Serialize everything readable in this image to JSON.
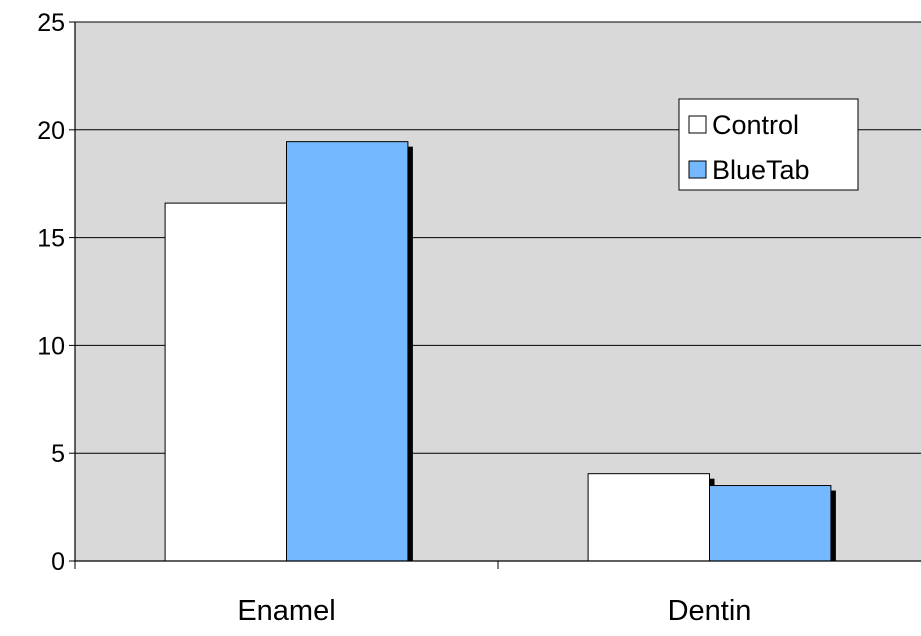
{
  "chart_data": {
    "type": "bar",
    "categories": [
      "Enamel",
      "Dentin"
    ],
    "series": [
      {
        "name": "Control",
        "values": [
          16.6,
          4.05
        ],
        "color": "#ffffff"
      },
      {
        "name": "BlueTab",
        "values": [
          19.45,
          3.5
        ],
        "color": "#74b9ff"
      }
    ],
    "ylim": [
      0,
      25
    ],
    "yticks": [
      0,
      5,
      10,
      15,
      20,
      25
    ],
    "title": "",
    "xlabel": "",
    "ylabel": "",
    "grid": true,
    "legend": "top-right",
    "plot_background": "#d9d9d9"
  }
}
